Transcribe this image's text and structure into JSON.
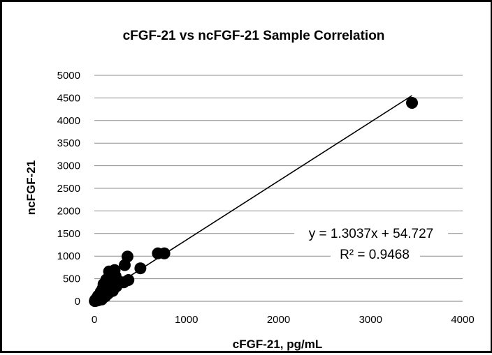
{
  "chart_data": {
    "type": "scatter",
    "title": "cFGF-21 vs ncFGF-21 Sample Correlation",
    "xlabel": "cFGF-21, pg/mL",
    "ylabel": "ncFGF-21",
    "xlim": [
      0,
      4000
    ],
    "ylim": [
      0,
      5000
    ],
    "x_ticks": [
      0,
      1000,
      2000,
      3000,
      4000
    ],
    "y_ticks": [
      0,
      500,
      1000,
      1500,
      2000,
      2500,
      3000,
      3500,
      4000,
      4500,
      5000
    ],
    "grid": "horizontal",
    "legend": "none",
    "points": [
      {
        "x": 3450,
        "y": 4390
      },
      {
        "x": 760,
        "y": 1060
      },
      {
        "x": 690,
        "y": 1060
      },
      {
        "x": 360,
        "y": 990
      },
      {
        "x": 330,
        "y": 800
      },
      {
        "x": 500,
        "y": 730
      },
      {
        "x": 220,
        "y": 690
      },
      {
        "x": 160,
        "y": 660
      },
      {
        "x": 230,
        "y": 560
      },
      {
        "x": 180,
        "y": 520
      },
      {
        "x": 130,
        "y": 480
      },
      {
        "x": 370,
        "y": 470
      },
      {
        "x": 260,
        "y": 450
      },
      {
        "x": 320,
        "y": 420
      },
      {
        "x": 200,
        "y": 400
      },
      {
        "x": 100,
        "y": 380
      },
      {
        "x": 150,
        "y": 350
      },
      {
        "x": 240,
        "y": 330
      },
      {
        "x": 180,
        "y": 300
      },
      {
        "x": 90,
        "y": 280
      },
      {
        "x": 130,
        "y": 250
      },
      {
        "x": 200,
        "y": 230
      },
      {
        "x": 70,
        "y": 210
      },
      {
        "x": 110,
        "y": 190
      },
      {
        "x": 150,
        "y": 170
      },
      {
        "x": 60,
        "y": 150
      },
      {
        "x": 90,
        "y": 130
      },
      {
        "x": 40,
        "y": 120
      },
      {
        "x": 120,
        "y": 110
      },
      {
        "x": 70,
        "y": 90
      },
      {
        "x": 30,
        "y": 80
      },
      {
        "x": 50,
        "y": 60
      },
      {
        "x": 20,
        "y": 50
      },
      {
        "x": 80,
        "y": 40
      },
      {
        "x": 10,
        "y": 30
      },
      {
        "x": 40,
        "y": 20
      },
      {
        "x": 15,
        "y": 10
      },
      {
        "x": 5,
        "y": 5
      }
    ],
    "trendline": {
      "slope": 1.3037,
      "intercept": 54.727,
      "x_start": 0,
      "x_end": 3450,
      "equation": "y = 1.3037x + 54.727",
      "r_squared": "R² = 0.9468"
    }
  }
}
